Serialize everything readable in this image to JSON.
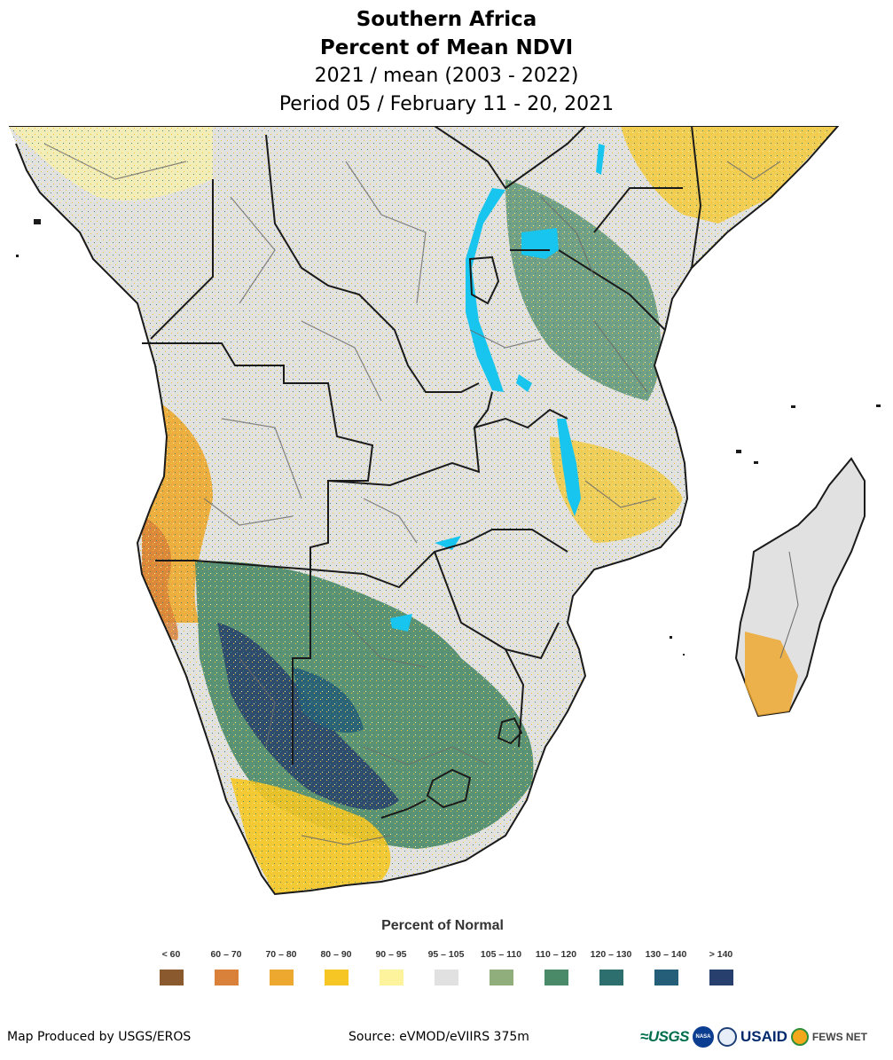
{
  "title": {
    "region": "Southern Africa",
    "product": "Percent of Mean NDVI",
    "comparison": "2021 / mean (2003 - 2022)",
    "period": "Period 05 / February 11 - 20, 2021"
  },
  "legend": {
    "title": "Percent of Normal",
    "items": [
      {
        "label": "< 60",
        "color": "#8a5a2e"
      },
      {
        "label": "60 – 70",
        "color": "#d9813a"
      },
      {
        "label": "70 – 80",
        "color": "#eda830"
      },
      {
        "label": "80 – 90",
        "color": "#f6c624"
      },
      {
        "label": "90 – 95",
        "color": "#fdf39c"
      },
      {
        "label": "95 – 105",
        "color": "#e1e1e1"
      },
      {
        "label": "105 – 110",
        "color": "#8fae7c"
      },
      {
        "label": "110 – 120",
        "color": "#4a8a68"
      },
      {
        "label": "120 – 130",
        "color": "#2d6e6e"
      },
      {
        "label": "130 – 140",
        "color": "#255e78"
      },
      {
        "label": "> 140",
        "color": "#273f6d"
      }
    ]
  },
  "map": {
    "land_color": "#e1e1e1",
    "water_color": "#17c5ef",
    "border_color": "#1a1a1a",
    "admin_border_color": "#6a6a6a"
  },
  "footer": {
    "producer": "Map Produced by USGS/EROS",
    "source": "Source: eVMOD/eVIIRS 375m",
    "logos": {
      "usgs": "≈USGS",
      "nasa": "NASA",
      "usaid": "USAID",
      "fews": "FEWS NET"
    }
  }
}
